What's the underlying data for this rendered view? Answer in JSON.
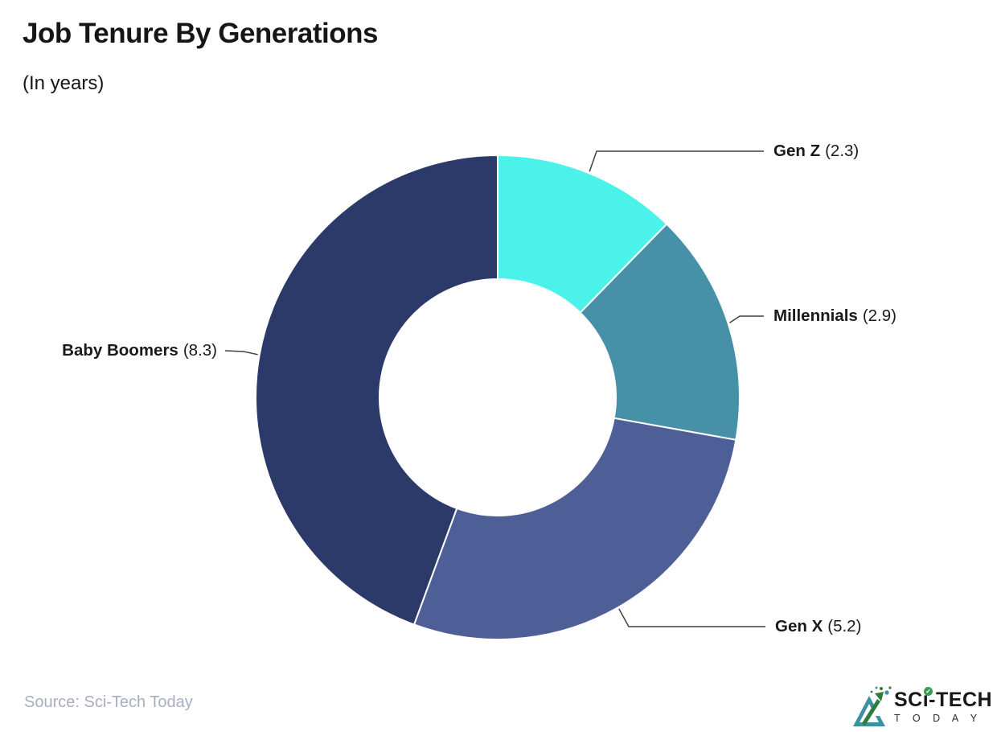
{
  "header": {
    "title": "Job Tenure By Generations",
    "subtitle": "(In years)"
  },
  "chart_data": {
    "type": "pie",
    "variant": "donut",
    "title": "Job Tenure By Generations",
    "subtitle": "(In years)",
    "unit": "years",
    "total": 18.7,
    "start_angle_deg": 0,
    "direction": "clockwise",
    "inner_radius_ratio": 0.49,
    "slices": [
      {
        "label": "Gen Z",
        "value": 2.3,
        "color": "#4bf2e9"
      },
      {
        "label": "Millennials",
        "value": 2.9,
        "color": "#4691a8"
      },
      {
        "label": "Gen X",
        "value": 5.2,
        "color": "#4d5f96"
      },
      {
        "label": "Baby Boomers",
        "value": 8.3,
        "color": "#2b3a68"
      }
    ],
    "legend_position": "callouts",
    "callout_line_color": "#404040",
    "slice_border_color": "#ffffff"
  },
  "footer": {
    "source": "Source: Sci-Tech Today",
    "logo": {
      "brand_top": "SCi-TECH",
      "brand_bottom": "T O D A Y",
      "check_glyph": "✓",
      "mark_teal": "#3d8fa3",
      "mark_green": "#2f7d3b"
    }
  }
}
